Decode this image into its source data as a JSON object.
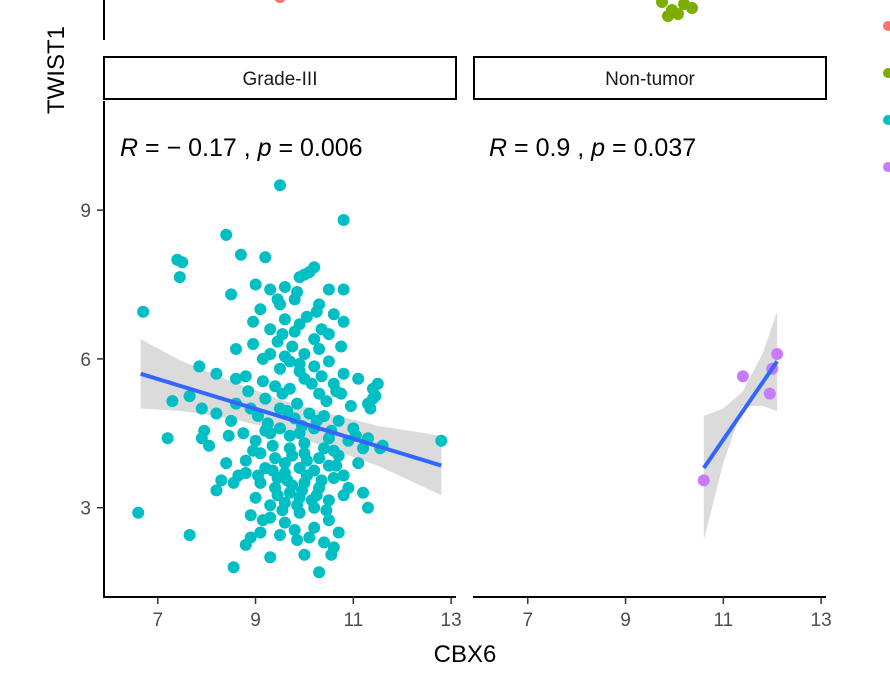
{
  "chart_data": {
    "type": "scatter",
    "xlabel": "CBX6",
    "ylabel": "TWIST1",
    "x_ticks": [
      7,
      9,
      11,
      13
    ],
    "y_ticks": [
      3,
      6,
      9
    ],
    "xlim": [
      5.9,
      13.1
    ],
    "ylim": [
      1.2,
      11.2
    ],
    "panels": [
      {
        "strip_label": "Grade-III",
        "stat_label": "R = − 0.17 , p = 0.006",
        "stat_parts": {
          "r_sym": "R",
          "r_eq": " = ",
          "r_val": "− 0.17",
          "sep": " , ",
          "p_sym": "p",
          "p_eq": " = ",
          "p_val": "0.006"
        },
        "color": "#00BFC4",
        "fit": {
          "x_start": 6.65,
          "y_start": 5.7,
          "x_end": 12.8,
          "y_end": 3.85
        },
        "ci_band": [
          [
            6.65,
            6.4
          ],
          [
            7.5,
            5.95
          ],
          [
            8.5,
            5.55
          ],
          [
            9.5,
            5.18
          ],
          [
            10.5,
            4.9
          ],
          [
            11.5,
            4.65
          ],
          [
            12.8,
            4.45
          ],
          [
            12.8,
            3.25
          ],
          [
            11.5,
            3.85
          ],
          [
            10.5,
            4.2
          ],
          [
            9.5,
            4.55
          ],
          [
            8.5,
            4.8
          ],
          [
            7.5,
            4.95
          ],
          [
            6.65,
            5.0
          ]
        ],
        "points": [
          [
            9.5,
            9.5
          ],
          [
            10.8,
            8.8
          ],
          [
            8.4,
            8.5
          ],
          [
            7.4,
            8.0
          ],
          [
            7.5,
            7.95
          ],
          [
            8.7,
            8.1
          ],
          [
            9.2,
            8.05
          ],
          [
            7.45,
            7.65
          ],
          [
            6.7,
            6.95
          ],
          [
            8.5,
            7.3
          ],
          [
            9.0,
            7.5
          ],
          [
            9.3,
            7.4
          ],
          [
            9.6,
            7.45
          ],
          [
            10.0,
            7.7
          ],
          [
            10.1,
            7.75
          ],
          [
            10.2,
            7.85
          ],
          [
            10.5,
            7.4
          ],
          [
            10.8,
            7.4
          ],
          [
            9.9,
            7.65
          ],
          [
            9.1,
            7.0
          ],
          [
            9.5,
            7.1
          ],
          [
            9.8,
            7.2
          ],
          [
            10.3,
            7.1
          ],
          [
            10.6,
            6.9
          ],
          [
            9.3,
            6.6
          ],
          [
            9.6,
            6.8
          ],
          [
            9.9,
            6.7
          ],
          [
            10.2,
            6.4
          ],
          [
            10.5,
            6.5
          ],
          [
            10.8,
            6.75
          ],
          [
            10.3,
            6.2
          ],
          [
            9.8,
            6.55
          ],
          [
            10.0,
            6.1
          ],
          [
            8.6,
            6.2
          ],
          [
            8.95,
            6.3
          ],
          [
            9.3,
            6.1
          ],
          [
            9.6,
            6.05
          ],
          [
            9.5,
            5.8
          ],
          [
            9.7,
            5.95
          ],
          [
            9.9,
            5.9
          ],
          [
            10.2,
            5.85
          ],
          [
            10.5,
            5.95
          ],
          [
            10.8,
            5.7
          ],
          [
            11.1,
            5.6
          ],
          [
            11.4,
            5.4
          ],
          [
            11.5,
            5.5
          ],
          [
            11.3,
            5.1
          ],
          [
            11.4,
            5.2
          ],
          [
            10.6,
            5.5
          ],
          [
            10.3,
            5.3
          ],
          [
            10.0,
            5.6
          ],
          [
            9.7,
            5.4
          ],
          [
            9.5,
            5.0
          ],
          [
            9.2,
            5.2
          ],
          [
            8.9,
            5.0
          ],
          [
            8.6,
            5.1
          ],
          [
            8.8,
            5.65
          ],
          [
            8.6,
            5.6
          ],
          [
            8.2,
            5.7
          ],
          [
            7.85,
            5.85
          ],
          [
            7.3,
            5.15
          ],
          [
            7.65,
            5.25
          ],
          [
            7.9,
            5.0
          ],
          [
            8.2,
            4.9
          ],
          [
            8.5,
            4.75
          ],
          [
            8.75,
            4.5
          ],
          [
            9.0,
            4.35
          ],
          [
            9.3,
            4.5
          ],
          [
            9.5,
            4.6
          ],
          [
            9.8,
            4.8
          ],
          [
            10.1,
            4.9
          ],
          [
            10.4,
            4.85
          ],
          [
            10.7,
            4.75
          ],
          [
            11.0,
            4.6
          ],
          [
            11.3,
            4.4
          ],
          [
            11.6,
            4.25
          ],
          [
            12.8,
            4.35
          ],
          [
            9.1,
            4.1
          ],
          [
            9.4,
            4.0
          ],
          [
            9.7,
            4.2
          ],
          [
            10.0,
            4.3
          ],
          [
            10.3,
            4.0
          ],
          [
            10.6,
            4.15
          ],
          [
            10.9,
            4.35
          ],
          [
            11.2,
            4.2
          ],
          [
            8.8,
            3.95
          ],
          [
            9.2,
            3.8
          ],
          [
            9.6,
            3.7
          ],
          [
            9.9,
            3.8
          ],
          [
            10.2,
            3.75
          ],
          [
            10.5,
            3.85
          ],
          [
            10.8,
            3.65
          ],
          [
            11.1,
            3.9
          ],
          [
            7.9,
            4.4
          ],
          [
            8.05,
            4.25
          ],
          [
            7.2,
            4.4
          ],
          [
            8.4,
            3.9
          ],
          [
            8.3,
            3.55
          ],
          [
            8.55,
            3.5
          ],
          [
            8.8,
            3.7
          ],
          [
            9.1,
            3.5
          ],
          [
            9.4,
            3.4
          ],
          [
            9.7,
            3.3
          ],
          [
            10.0,
            3.5
          ],
          [
            10.3,
            3.4
          ],
          [
            10.6,
            3.6
          ],
          [
            10.9,
            3.4
          ],
          [
            11.2,
            3.3
          ],
          [
            8.2,
            3.35
          ],
          [
            9.0,
            3.2
          ],
          [
            9.3,
            3.05
          ],
          [
            9.6,
            3.1
          ],
          [
            9.9,
            3.2
          ],
          [
            10.2,
            3.0
          ],
          [
            10.5,
            3.15
          ],
          [
            10.8,
            3.25
          ],
          [
            11.3,
            3.0
          ],
          [
            9.3,
            2.8
          ],
          [
            9.6,
            2.7
          ],
          [
            9.9,
            2.9
          ],
          [
            10.2,
            2.6
          ],
          [
            10.5,
            2.75
          ],
          [
            8.9,
            2.85
          ],
          [
            9.1,
            2.5
          ],
          [
            9.5,
            2.45
          ],
          [
            9.8,
            2.55
          ],
          [
            10.1,
            2.4
          ],
          [
            10.4,
            2.3
          ],
          [
            10.7,
            2.5
          ],
          [
            10.6,
            2.2
          ],
          [
            8.9,
            2.4
          ],
          [
            8.8,
            2.25
          ],
          [
            9.3,
            2.0
          ],
          [
            10.0,
            2.05
          ],
          [
            7.65,
            2.45
          ],
          [
            6.6,
            2.9
          ],
          [
            8.55,
            1.8
          ],
          [
            10.3,
            1.7
          ],
          [
            9.45,
            3.6
          ],
          [
            9.75,
            4.05
          ],
          [
            10.05,
            3.95
          ],
          [
            9.25,
            4.7
          ],
          [
            9.55,
            5.3
          ],
          [
            9.85,
            5.1
          ],
          [
            10.15,
            5.5
          ],
          [
            10.45,
            5.15
          ],
          [
            10.75,
            5.3
          ],
          [
            10.95,
            5.05
          ],
          [
            9.15,
            5.55
          ],
          [
            9.45,
            6.35
          ],
          [
            9.75,
            6.25
          ],
          [
            10.05,
            6.85
          ],
          [
            10.35,
            6.6
          ],
          [
            9.6,
            3.9
          ],
          [
            9.9,
            4.5
          ],
          [
            10.2,
            4.6
          ],
          [
            10.5,
            4.4
          ],
          [
            9.35,
            4.25
          ],
          [
            9.65,
            4.95
          ],
          [
            9.95,
            4.65
          ],
          [
            10.25,
            4.75
          ],
          [
            10.55,
            4.55
          ],
          [
            9.45,
            3.25
          ],
          [
            9.75,
            3.45
          ],
          [
            10.05,
            3.65
          ],
          [
            10.35,
            3.55
          ],
          [
            10.65,
            3.85
          ],
          [
            9.05,
            3.65
          ],
          [
            9.35,
            3.75
          ],
          [
            9.65,
            3.55
          ],
          [
            9.95,
            3.35
          ],
          [
            10.25,
            3.25
          ],
          [
            9.55,
            2.95
          ],
          [
            9.85,
            3.05
          ],
          [
            10.15,
            3.15
          ],
          [
            10.45,
            2.95
          ],
          [
            9.2,
            4.55
          ],
          [
            9.7,
            4.45
          ],
          [
            10.0,
            4.1
          ],
          [
            10.4,
            4.2
          ],
          [
            10.7,
            4.05
          ],
          [
            11.05,
            4.45
          ],
          [
            9.05,
            4.85
          ],
          [
            9.4,
            5.45
          ],
          [
            9.9,
            5.75
          ],
          [
            10.35,
            5.65
          ],
          [
            10.65,
            5.35
          ],
          [
            8.85,
            5.35
          ],
          [
            9.15,
            6.0
          ],
          [
            9.55,
            6.5
          ],
          [
            10.25,
            6.95
          ],
          [
            9.45,
            7.2
          ],
          [
            9.85,
            7.35
          ],
          [
            8.95,
            6.75
          ],
          [
            10.75,
            6.25
          ],
          [
            11.45,
            5.25
          ],
          [
            11.35,
            5.0
          ],
          [
            7.95,
            4.55
          ],
          [
            8.45,
            4.45
          ],
          [
            8.95,
            4.15
          ],
          [
            8.65,
            3.65
          ],
          [
            9.85,
            2.35
          ],
          [
            10.55,
            2.05
          ],
          [
            9.15,
            2.75
          ],
          [
            11.55,
            4.2
          ]
        ]
      },
      {
        "strip_label": "Non-tumor",
        "stat_label": "R = 0.9 , p = 0.037",
        "stat_parts": {
          "r_sym": "R",
          "r_eq": " = ",
          "r_val": "0.9",
          "sep": " , ",
          "p_sym": "p",
          "p_eq": " = ",
          "p_val": "0.037"
        },
        "color": "#C77CFF",
        "fit": {
          "x_start": 10.6,
          "y_start": 3.8,
          "x_end": 12.1,
          "y_end": 5.95
        },
        "ci_band": [
          [
            10.6,
            4.85
          ],
          [
            11.0,
            5.0
          ],
          [
            11.4,
            5.35
          ],
          [
            11.8,
            6.1
          ],
          [
            12.1,
            6.95
          ],
          [
            12.1,
            4.95
          ],
          [
            11.8,
            5.05
          ],
          [
            11.4,
            5.05
          ],
          [
            11.0,
            3.9
          ],
          [
            10.6,
            2.35
          ]
        ],
        "points": [
          [
            10.6,
            3.55
          ],
          [
            11.4,
            5.65
          ],
          [
            11.95,
            5.3
          ],
          [
            12.0,
            5.8
          ],
          [
            12.1,
            6.1
          ]
        ]
      }
    ],
    "top_strip_points": [
      {
        "x": 9.5,
        "color": "#F8766D"
      },
      {
        "x": 8.9,
        "color": "#7CAE00"
      },
      {
        "x": 9.1,
        "color": "#7CAE00"
      },
      {
        "x": 9.3,
        "color": "#7CAE00"
      },
      {
        "x": 9.5,
        "color": "#7CAE00"
      },
      {
        "x": 9.2,
        "color": "#7CAE00"
      },
      {
        "x": 9.6,
        "color": "#7CAE00"
      }
    ],
    "legend_colors": [
      "#F8766D",
      "#7CAE00",
      "#00BFC4",
      "#C77CFF"
    ],
    "fit_color": "#3366FF",
    "band_color": "#999999"
  }
}
